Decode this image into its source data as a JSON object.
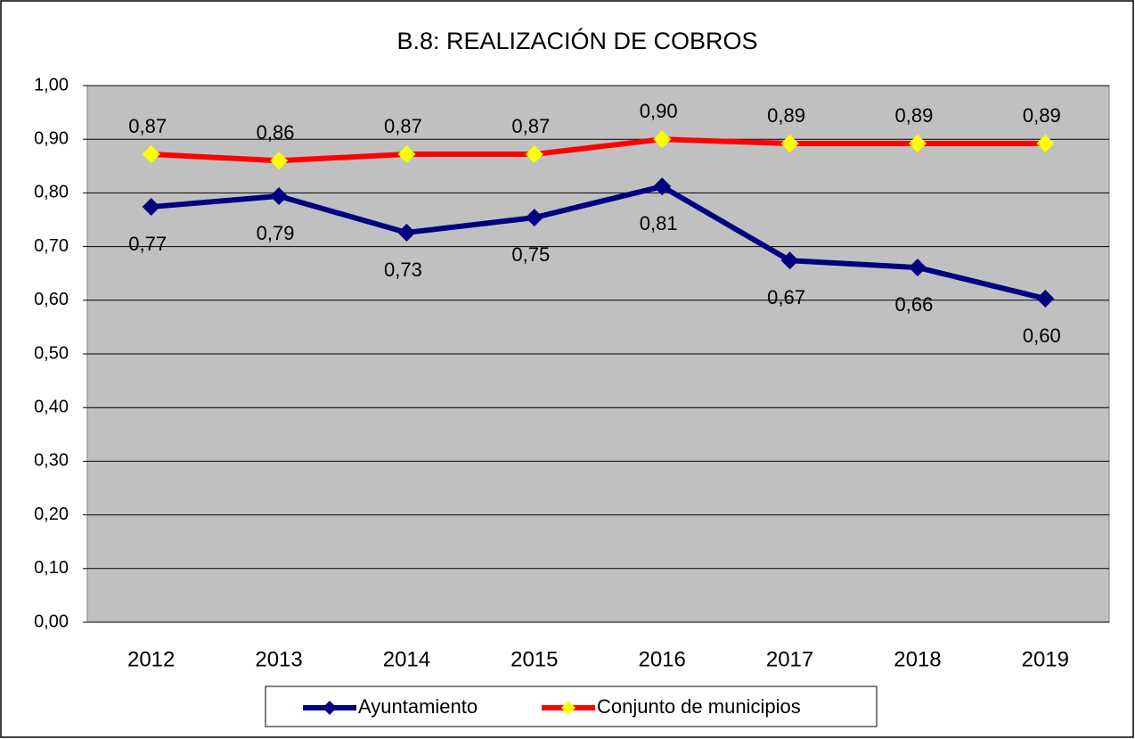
{
  "chart_data": {
    "type": "line",
    "title": "B.8: REALIZACIÓN DE COBROS",
    "categories": [
      "2012",
      "2013",
      "2014",
      "2015",
      "2016",
      "2017",
      "2018",
      "2019"
    ],
    "series": [
      {
        "name": "Ayuntamiento",
        "color": "#000080",
        "marker_color": "#000080",
        "values": [
          0.774,
          0.794,
          0.726,
          0.754,
          0.812,
          0.674,
          0.661,
          0.603
        ],
        "value_labels": [
          "0,77",
          "0,79",
          "0,73",
          "0,75",
          "0,81",
          "0,67",
          "0,66",
          "0,60"
        ]
      },
      {
        "name": "Conjunto de municipios",
        "color": "#ff0000",
        "marker_color": "#ffff00",
        "values": [
          0.872,
          0.86,
          0.872,
          0.872,
          0.9,
          0.892,
          0.892,
          0.892
        ],
        "value_labels": [
          "0,87",
          "0,86",
          "0,87",
          "0,87",
          "0,90",
          "0,89",
          "0,89",
          "0,89"
        ]
      }
    ],
    "ylim": [
      0,
      1
    ],
    "yticks": [
      {
        "value": 0,
        "label": "0,00"
      },
      {
        "value": 0.1,
        "label": "0,10"
      },
      {
        "value": 0.2,
        "label": "0,20"
      },
      {
        "value": 0.3,
        "label": "0,30"
      },
      {
        "value": 0.4,
        "label": "0,40"
      },
      {
        "value": 0.5,
        "label": "0,50"
      },
      {
        "value": 0.6,
        "label": "0,60"
      },
      {
        "value": 0.7,
        "label": "0,70"
      },
      {
        "value": 0.8,
        "label": "0,80"
      },
      {
        "value": 0.9,
        "label": "0,90"
      },
      {
        "value": 1,
        "label": "1,00"
      }
    ],
    "grid": true,
    "plot_background": "#c0c0c0",
    "legend": "bottom"
  }
}
